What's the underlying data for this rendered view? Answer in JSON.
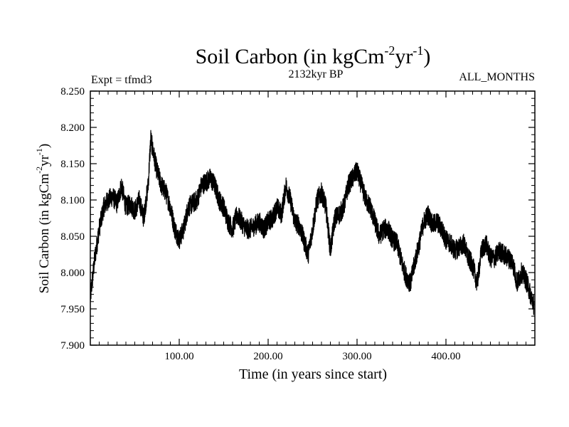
{
  "chart_data": {
    "type": "line",
    "title_main": "Soil Carbon (in kgCm",
    "title_exp1": "-2",
    "title_mid": "yr",
    "title_exp2": "-1",
    "title_close": ")",
    "subtitle": "2132kyr BP",
    "left_label": "Expt = tfmd3",
    "right_label": "ALL_MONTHS",
    "xlabel": "Time (in years since start)",
    "ylabel_main": "Soil Carbon (in kgCm",
    "ylabel_exp1": "-2",
    "ylabel_mid": "yr",
    "ylabel_exp2": "-1",
    "ylabel_close": ")",
    "xlim": [
      0,
      500
    ],
    "ylim": [
      7.9,
      8.25
    ],
    "x_ticks": [
      100,
      200,
      300,
      400
    ],
    "x_tick_labels": [
      "100.00",
      "200.00",
      "300.00",
      "400.00"
    ],
    "y_ticks": [
      7.9,
      7.95,
      8.0,
      8.05,
      8.1,
      8.15,
      8.2,
      8.25
    ],
    "y_tick_labels": [
      "7.900",
      "7.950",
      "8.000",
      "8.050",
      "8.100",
      "8.150",
      "8.200",
      "8.250"
    ],
    "series": [
      {
        "name": "Soil Carbon",
        "x": [
          0,
          5,
          10,
          15,
          20,
          25,
          30,
          35,
          40,
          45,
          50,
          55,
          60,
          65,
          68,
          70,
          75,
          80,
          85,
          90,
          95,
          100,
          105,
          110,
          115,
          120,
          125,
          130,
          135,
          140,
          145,
          150,
          155,
          160,
          165,
          170,
          175,
          180,
          185,
          190,
          195,
          200,
          205,
          210,
          215,
          220,
          225,
          230,
          235,
          240,
          245,
          250,
          255,
          260,
          265,
          270,
          275,
          280,
          285,
          290,
          295,
          300,
          305,
          310,
          315,
          320,
          325,
          330,
          335,
          340,
          345,
          350,
          355,
          360,
          365,
          370,
          375,
          380,
          385,
          390,
          395,
          400,
          405,
          410,
          415,
          420,
          425,
          430,
          435,
          440,
          445,
          450,
          455,
          460,
          465,
          470,
          475,
          480,
          485,
          490,
          495,
          499
        ],
        "y": [
          7.965,
          8.02,
          8.06,
          8.09,
          8.1,
          8.105,
          8.095,
          8.12,
          8.09,
          8.095,
          8.085,
          8.1,
          8.075,
          8.12,
          8.185,
          8.17,
          8.14,
          8.12,
          8.11,
          8.09,
          8.06,
          8.045,
          8.06,
          8.09,
          8.095,
          8.1,
          8.12,
          8.125,
          8.13,
          8.12,
          8.1,
          8.09,
          8.07,
          8.06,
          8.08,
          8.07,
          8.06,
          8.06,
          8.065,
          8.07,
          8.06,
          8.07,
          8.075,
          8.09,
          8.08,
          8.12,
          8.1,
          8.07,
          8.065,
          8.045,
          8.025,
          8.06,
          8.1,
          8.11,
          8.09,
          8.03,
          8.075,
          8.08,
          8.09,
          8.12,
          8.13,
          8.14,
          8.12,
          8.1,
          8.09,
          8.07,
          8.05,
          8.06,
          8.06,
          8.045,
          8.04,
          8.015,
          7.995,
          7.985,
          8.015,
          8.04,
          8.07,
          8.08,
          8.065,
          8.07,
          8.06,
          8.045,
          8.04,
          8.03,
          8.035,
          8.04,
          8.02,
          8.01,
          7.985,
          8.03,
          8.04,
          8.02,
          8.02,
          8.03,
          8.025,
          8.02,
          8.015,
          7.985,
          8.0,
          7.99,
          7.97,
          7.955
        ]
      }
    ]
  }
}
